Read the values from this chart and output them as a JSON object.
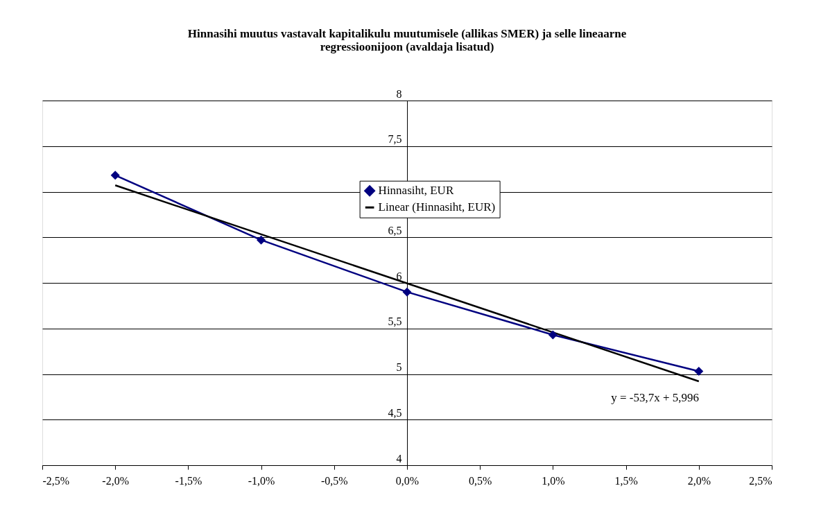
{
  "chart_data": {
    "type": "line",
    "title": "Hinnasihi muutus vastavalt kapitalikulu muutumisele (allikas SMER) ja selle lineaarne regressioonijoon (avaldaja lisatud)",
    "x": [
      -2.0,
      -1.0,
      0.0,
      1.0,
      2.0
    ],
    "series": [
      {
        "name": "Hinnasiht, EUR",
        "color": "#000080",
        "values": [
          7.18,
          6.47,
          5.9,
          5.43,
          5.03
        ],
        "marker": "diamond"
      },
      {
        "name": "Linear (Hinnasiht, EUR)",
        "color": "#000000",
        "type": "line",
        "x": [
          -2.0,
          2.0
        ],
        "values": [
          7.07,
          4.92
        ],
        "marker": "none"
      }
    ],
    "xlim": [
      -2.5,
      2.5
    ],
    "xticks": [
      {
        "value": -2.5,
        "label": "-2,5%"
      },
      {
        "value": -2.0,
        "label": "-2,0%"
      },
      {
        "value": -1.5,
        "label": "-1,5%"
      },
      {
        "value": -1.0,
        "label": "-1,0%"
      },
      {
        "value": -0.5,
        "label": "-0,5%"
      },
      {
        "value": 0.0,
        "label": "0,0%"
      },
      {
        "value": 0.5,
        "label": "0,5%"
      },
      {
        "value": 1.0,
        "label": "1,0%"
      },
      {
        "value": 1.5,
        "label": "1,5%"
      },
      {
        "value": 2.0,
        "label": "2,0%"
      },
      {
        "value": 2.5,
        "label": "2,5%"
      }
    ],
    "ylim": [
      4,
      8
    ],
    "yticks": [
      4,
      {
        "value": 4.5,
        "label": "4,5"
      },
      5,
      {
        "value": 5.5,
        "label": "5,5"
      },
      6,
      {
        "value": 6.5,
        "label": "6,5"
      },
      {
        "value": 7,
        "label": null
      },
      {
        "value": 7.5,
        "label": "7,5"
      },
      8
    ],
    "grid": "y",
    "legend": "top",
    "annotations": [
      "y = -53,7x + 5,996"
    ]
  }
}
